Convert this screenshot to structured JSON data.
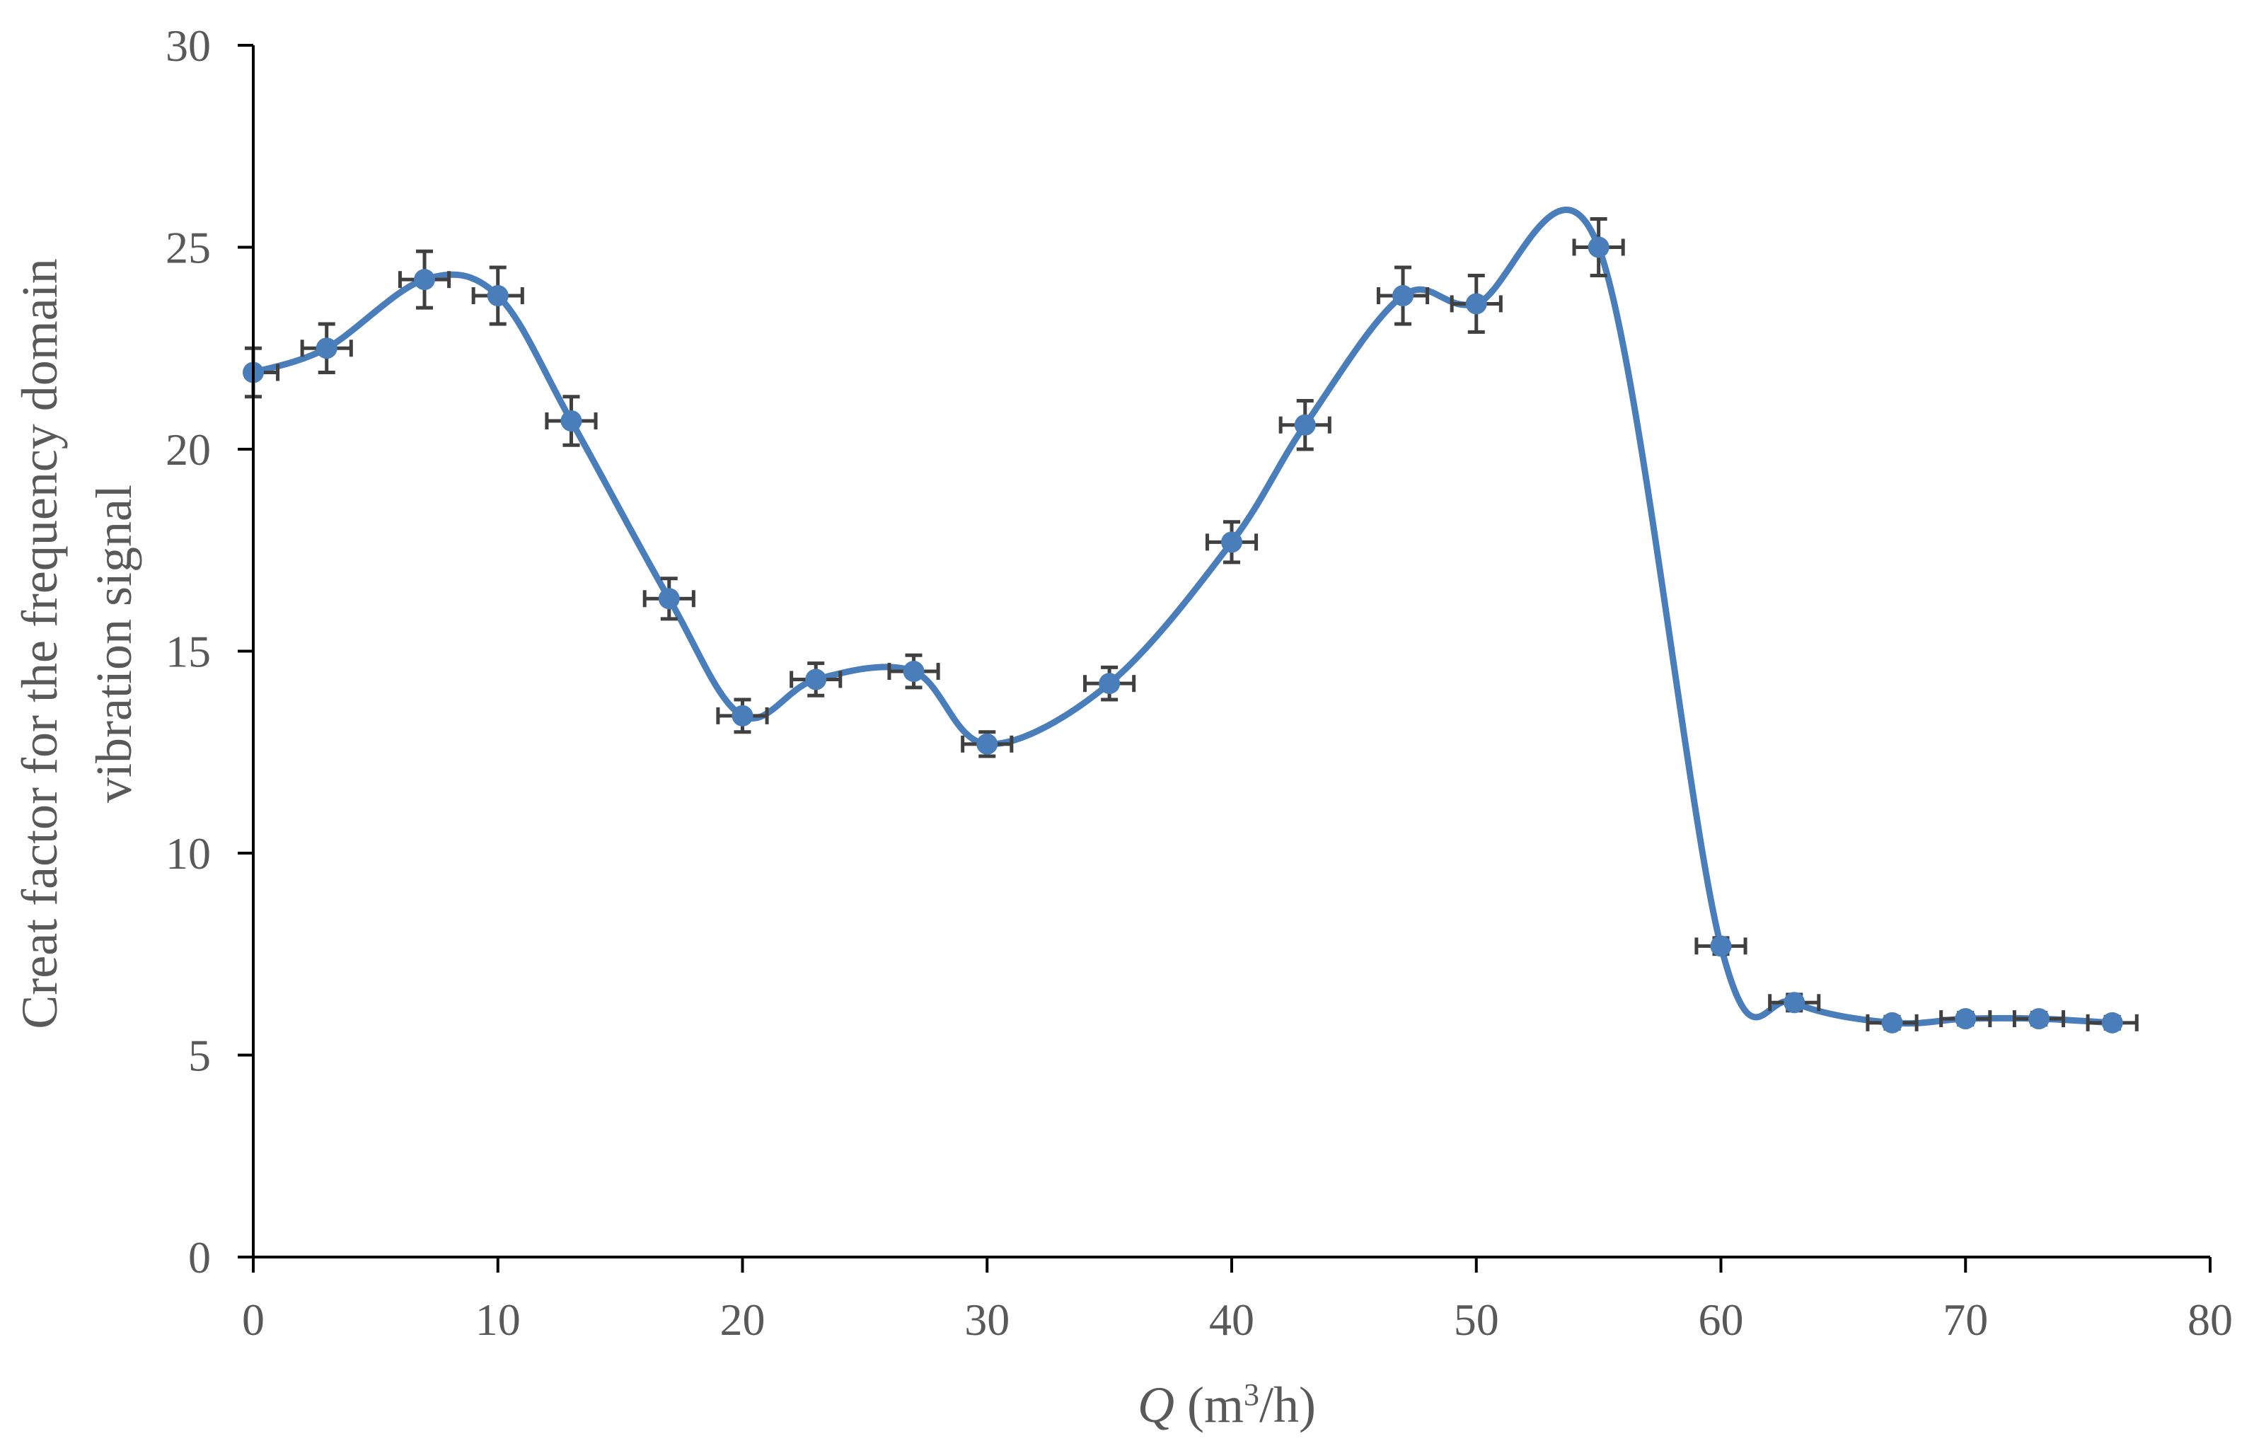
{
  "chart_data": {
    "type": "scatter",
    "x_axis": {
      "min": 0,
      "max": 80,
      "ticks": [
        "0",
        "10",
        "20",
        "30",
        "40",
        "50",
        "60",
        "70",
        "80"
      ],
      "label_var": "Q",
      "label_unit_prefix": " (m",
      "label_unit_sup": "3",
      "label_unit_suffix": "/h)"
    },
    "y_axis": {
      "min": 0,
      "max": 30,
      "ticks": [
        "0",
        "5",
        "10",
        "15",
        "20",
        "25",
        "30"
      ],
      "label_line1": "Creat factor for  the frequency domain",
      "label_line2": "vibration signal"
    },
    "grid": false,
    "smooth_line": true,
    "series": [
      {
        "color": "#4a7ebb",
        "x": [
          0,
          3,
          7,
          10,
          13,
          17,
          20,
          23,
          27,
          30,
          35,
          40,
          43,
          47,
          50,
          55,
          60,
          63,
          67,
          70,
          73,
          76
        ],
        "y": [
          21.9,
          22.5,
          24.2,
          23.8,
          20.7,
          16.3,
          13.4,
          14.3,
          14.5,
          12.7,
          14.2,
          17.7,
          20.6,
          23.8,
          23.6,
          25.0,
          7.7,
          6.3,
          5.8,
          5.9,
          5.9,
          5.8
        ],
        "x_error": 1,
        "y_error": [
          0.6,
          0.6,
          0.7,
          0.7,
          0.6,
          0.5,
          0.4,
          0.4,
          0.4,
          0.3,
          0.4,
          0.5,
          0.6,
          0.7,
          0.7,
          0.7,
          0.2,
          0.2,
          0.15,
          0.15,
          0.15,
          0.15
        ]
      }
    ]
  }
}
